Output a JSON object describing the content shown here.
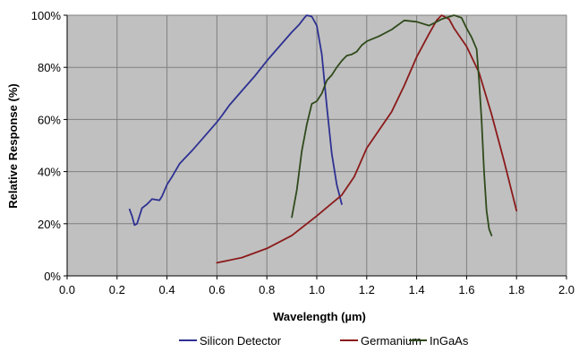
{
  "chart_data": {
    "type": "line",
    "xlabel": "Wavelength (µm)",
    "ylabel": "Relative Response (%)",
    "xlim": [
      0.0,
      2.0
    ],
    "ylim": [
      0,
      100
    ],
    "x_ticks": [
      "0.0",
      "0.2",
      "0.4",
      "0.6",
      "0.8",
      "1.0",
      "1.2",
      "1.4",
      "1.6",
      "1.8",
      "2.0"
    ],
    "y_ticks": [
      "0%",
      "20%",
      "40%",
      "60%",
      "80%",
      "100%"
    ],
    "grid": true,
    "plot_background": "#c0c0c0",
    "legend_position": "bottom",
    "series": [
      {
        "name": "Silicon Detector",
        "color": "#2e3192",
        "points": [
          [
            0.25,
            25.5
          ],
          [
            0.26,
            23.0
          ],
          [
            0.27,
            19.5
          ],
          [
            0.28,
            20.0
          ],
          [
            0.29,
            23.0
          ],
          [
            0.3,
            26.0
          ],
          [
            0.32,
            27.5
          ],
          [
            0.34,
            29.5
          ],
          [
            0.37,
            29.0
          ],
          [
            0.38,
            30.5
          ],
          [
            0.4,
            35.0
          ],
          [
            0.42,
            38.0
          ],
          [
            0.45,
            43.0
          ],
          [
            0.5,
            48.0
          ],
          [
            0.55,
            53.5
          ],
          [
            0.6,
            59.0
          ],
          [
            0.62,
            61.5
          ],
          [
            0.65,
            65.5
          ],
          [
            0.7,
            71.0
          ],
          [
            0.75,
            76.5
          ],
          [
            0.8,
            82.5
          ],
          [
            0.85,
            88.0
          ],
          [
            0.9,
            93.5
          ],
          [
            0.93,
            96.5
          ],
          [
            0.95,
            99.0
          ],
          [
            0.96,
            100.0
          ],
          [
            0.98,
            99.5
          ],
          [
            1.0,
            96.0
          ],
          [
            1.02,
            85.0
          ],
          [
            1.04,
            65.0
          ],
          [
            1.06,
            47.0
          ],
          [
            1.08,
            35.0
          ],
          [
            1.1,
            27.5
          ]
        ]
      },
      {
        "name": "Germanium",
        "color": "#8b1a1a",
        "points": [
          [
            0.6,
            5.0
          ],
          [
            0.7,
            7.0
          ],
          [
            0.8,
            10.5
          ],
          [
            0.9,
            15.5
          ],
          [
            1.0,
            23.0
          ],
          [
            1.05,
            27.0
          ],
          [
            1.1,
            31.0
          ],
          [
            1.15,
            38.0
          ],
          [
            1.2,
            49.0
          ],
          [
            1.3,
            63.0
          ],
          [
            1.35,
            73.0
          ],
          [
            1.4,
            84.0
          ],
          [
            1.45,
            93.0
          ],
          [
            1.48,
            98.0
          ],
          [
            1.5,
            100.0
          ],
          [
            1.53,
            98.5
          ],
          [
            1.55,
            95.0
          ],
          [
            1.6,
            88.0
          ],
          [
            1.65,
            78.0
          ],
          [
            1.7,
            62.0
          ],
          [
            1.75,
            44.0
          ],
          [
            1.8,
            25.0
          ]
        ]
      },
      {
        "name": "InGaAs",
        "color": "#2f4a1b",
        "points": [
          [
            0.9,
            22.5
          ],
          [
            0.92,
            33.0
          ],
          [
            0.94,
            48.0
          ],
          [
            0.96,
            58.0
          ],
          [
            0.98,
            66.0
          ],
          [
            1.0,
            67.0
          ],
          [
            1.02,
            70.0
          ],
          [
            1.04,
            75.0
          ],
          [
            1.06,
            77.0
          ],
          [
            1.08,
            80.0
          ],
          [
            1.1,
            82.5
          ],
          [
            1.12,
            84.5
          ],
          [
            1.14,
            85.0
          ],
          [
            1.16,
            86.0
          ],
          [
            1.18,
            88.5
          ],
          [
            1.2,
            90.0
          ],
          [
            1.25,
            92.0
          ],
          [
            1.3,
            94.5
          ],
          [
            1.35,
            98.0
          ],
          [
            1.4,
            97.5
          ],
          [
            1.45,
            96.0
          ],
          [
            1.5,
            98.5
          ],
          [
            1.55,
            100.0
          ],
          [
            1.58,
            99.0
          ],
          [
            1.6,
            95.0
          ],
          [
            1.62,
            91.5
          ],
          [
            1.64,
            87.0
          ],
          [
            1.65,
            75.0
          ],
          [
            1.66,
            60.0
          ],
          [
            1.67,
            40.0
          ],
          [
            1.68,
            25.0
          ],
          [
            1.69,
            18.0
          ],
          [
            1.7,
            15.5
          ]
        ]
      }
    ]
  }
}
